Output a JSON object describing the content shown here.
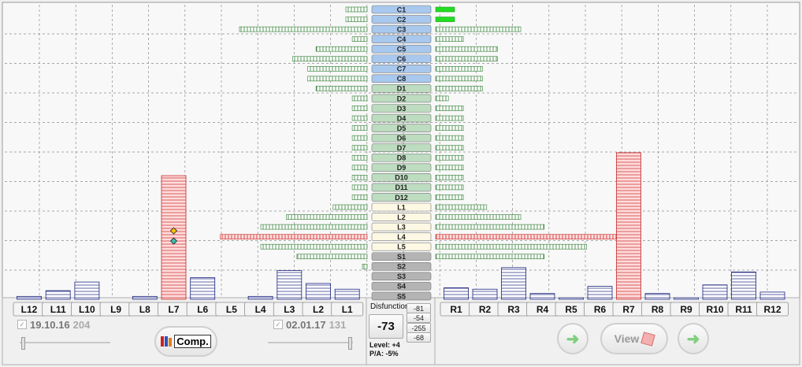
{
  "colors": {
    "grid": "#8c8c8c",
    "c_label": "#a8c8ee",
    "d_label": "#bddcc0",
    "l_label": "#fdf8e4",
    "s_label": "#b4b4b4",
    "green_bar_stroke": "#2e7d32",
    "green_bar_fill": "#ffffff",
    "red_bar_stroke": "#c62828",
    "red_bar_fill": "#ffdcdc",
    "blue_bar_stroke": "#1a237e",
    "marker_yellow": "#f9c800",
    "marker_teal": "#3fbfb0",
    "bright_green": "#22dd22"
  },
  "segments": [
    {
      "label": "C1",
      "group": "c",
      "left": 0.1,
      "right": 0.1,
      "right_solid": true
    },
    {
      "label": "C2",
      "group": "c",
      "left": 0.1,
      "right": 0.1,
      "right_solid": true
    },
    {
      "label": "C3",
      "group": "c",
      "left": 0.6,
      "right": 0.4
    },
    {
      "label": "C4",
      "group": "c",
      "left": 0.07,
      "right": 0.13
    },
    {
      "label": "C5",
      "group": "c",
      "left": 0.24,
      "right": 0.29
    },
    {
      "label": "C6",
      "group": "c",
      "left": 0.35,
      "right": 0.29
    },
    {
      "label": "C7",
      "group": "c",
      "left": 0.28,
      "right": 0.22
    },
    {
      "label": "C8",
      "group": "c",
      "left": 0.28,
      "right": 0.22
    },
    {
      "label": "D1",
      "group": "d",
      "left": 0.24,
      "right": 0.22
    },
    {
      "label": "D2",
      "group": "d",
      "left": 0.07,
      "right": 0.06
    },
    {
      "label": "D3",
      "group": "d",
      "left": 0.07,
      "right": 0.13
    },
    {
      "label": "D4",
      "group": "d",
      "left": 0.07,
      "right": 0.13
    },
    {
      "label": "D5",
      "group": "d",
      "left": 0.07,
      "right": 0.13
    },
    {
      "label": "D6",
      "group": "d",
      "left": 0.07,
      "right": 0.13
    },
    {
      "label": "D7",
      "group": "d",
      "left": 0.07,
      "right": 0.13
    },
    {
      "label": "D8",
      "group": "d",
      "left": 0.07,
      "right": 0.13
    },
    {
      "label": "D9",
      "group": "d",
      "left": 0.07,
      "right": 0.13
    },
    {
      "label": "D10",
      "group": "d",
      "left": 0.07,
      "right": 0.13
    },
    {
      "label": "D11",
      "group": "d",
      "left": 0.07,
      "right": 0.13
    },
    {
      "label": "D12",
      "group": "d",
      "left": 0.07,
      "right": 0.13
    },
    {
      "label": "L1",
      "group": "l",
      "left": 0.16,
      "right": 0.24
    },
    {
      "label": "L2",
      "group": "l",
      "left": 0.38,
      "right": 0.4
    },
    {
      "label": "L3",
      "group": "l",
      "left": 0.5,
      "right": 0.51
    },
    {
      "label": "L4",
      "group": "l",
      "left": 0.69,
      "right": 0.91,
      "red": true,
      "marker_right": true
    },
    {
      "label": "L5",
      "group": "l",
      "left": 0.5,
      "right": 0.71
    },
    {
      "label": "S1",
      "group": "s",
      "left": 0.33,
      "right": 0.51
    },
    {
      "label": "S2",
      "group": "s",
      "left": 0.02,
      "right": 0
    },
    {
      "label": "S3",
      "group": "s",
      "left": 0,
      "right": 0
    },
    {
      "label": "S4",
      "group": "s",
      "left": 0,
      "right": 0
    },
    {
      "label": "S5",
      "group": "s",
      "left": 0,
      "right": 0
    }
  ],
  "left_channels": [
    {
      "label": "L12",
      "level": 0.1
    },
    {
      "label": "L11",
      "level": 0.3
    },
    {
      "label": "L10",
      "level": 0.6
    },
    {
      "label": "L9",
      "level": 0
    },
    {
      "label": "L8",
      "level": 0.1
    },
    {
      "label": "L7",
      "level": 4.3,
      "red": true,
      "markers": [
        "yellow",
        "teal"
      ]
    },
    {
      "label": "L6",
      "level": 0.75
    },
    {
      "label": "L5",
      "level": 0
    },
    {
      "label": "L4",
      "level": 0.1
    },
    {
      "label": "L3",
      "level": 1.0
    },
    {
      "label": "L2",
      "level": 0.55
    },
    {
      "label": "L1",
      "level": 0.35
    }
  ],
  "right_channels": [
    {
      "label": "R1",
      "level": 0.4
    },
    {
      "label": "R2",
      "level": 0.35
    },
    {
      "label": "R3",
      "level": 1.1
    },
    {
      "label": "R4",
      "level": 0.2
    },
    {
      "label": "R5",
      "level": 0.05
    },
    {
      "label": "R6",
      "level": 0.45
    },
    {
      "label": "R7",
      "level": 5.1,
      "red": true
    },
    {
      "label": "R8",
      "level": 0.2
    },
    {
      "label": "R9",
      "level": 0.05
    },
    {
      "label": "R10",
      "level": 0.5
    },
    {
      "label": "R11",
      "level": 0.95
    },
    {
      "label": "R12",
      "level": 0.25
    }
  ],
  "left_panel": {
    "date": "19.10.16",
    "count": "204",
    "compare_label": "Comp."
  },
  "mid_panel": {
    "date": "02.01.17",
    "count": "131"
  },
  "center_panel": {
    "title": "Disfunction",
    "value": "-73",
    "small_values": [
      "-81",
      "-54",
      "-255",
      "-68"
    ],
    "level_text": "Level: +4",
    "pa_text": "P/A: -5%"
  },
  "right_panel": {
    "view_label": "View"
  }
}
